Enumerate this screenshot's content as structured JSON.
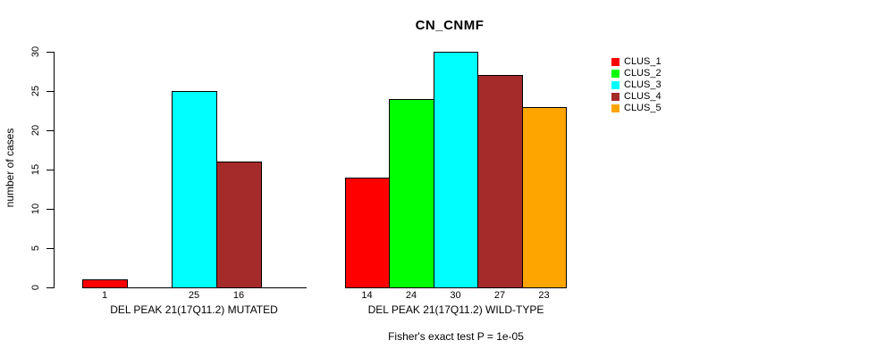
{
  "chart_data": {
    "type": "bar",
    "title": "CN_CNMF",
    "ylabel": "number of cases",
    "subtitle": "Fisher's exact test P = 1e-05",
    "ylim": [
      0,
      30
    ],
    "yticks": [
      0,
      5,
      10,
      15,
      20,
      25,
      30
    ],
    "grid": false,
    "legend_position": "right",
    "series": [
      {
        "name": "CLUS_1",
        "color": "#ff0000"
      },
      {
        "name": "CLUS_2",
        "color": "#00ff00"
      },
      {
        "name": "CLUS_3",
        "color": "#00ffff"
      },
      {
        "name": "CLUS_4",
        "color": "#a52a2a"
      },
      {
        "name": "CLUS_5",
        "color": "#ffa500"
      }
    ],
    "groups": [
      {
        "label": "DEL PEAK 21(17Q11.2) MUTATED",
        "values": [
          1,
          0,
          25,
          16,
          0
        ],
        "shown_value_labels": [
          "1",
          "25",
          "16"
        ]
      },
      {
        "label": "DEL PEAK 21(17Q11.2) WILD-TYPE",
        "values": [
          14,
          24,
          30,
          27,
          23
        ],
        "shown_value_labels": [
          "14",
          "24",
          "30",
          "27",
          "23"
        ]
      }
    ]
  }
}
